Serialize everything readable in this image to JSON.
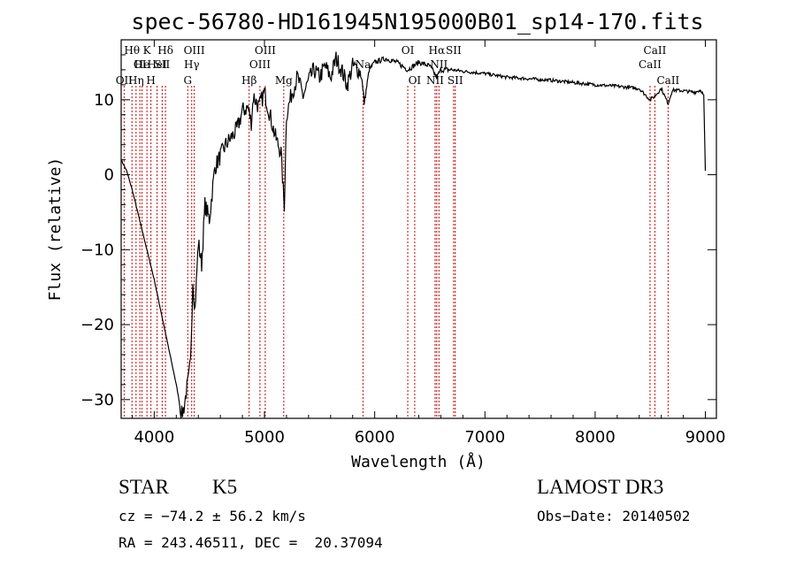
{
  "chart_data": {
    "type": "line",
    "title": "spec-56780-HD161945N195000B01_sp14-170.fits",
    "xlabel": "Wavelength (Å)",
    "ylabel": "Flux (relative)",
    "xlim": [
      3700,
      9100
    ],
    "ylim": [
      -32.5,
      18.0
    ],
    "xticks": [
      4000,
      5000,
      6000,
      7000,
      8000,
      9000
    ],
    "yticks": [
      -30,
      -20,
      -10,
      0,
      10
    ],
    "series": [
      {
        "name": "flux",
        "x": [
          3700,
          3750,
          3800,
          3850,
          3900,
          3950,
          4000,
          4050,
          4100,
          4150,
          4200,
          4230,
          4250,
          4270,
          4290,
          4310,
          4330,
          4350,
          4370,
          4400,
          4430,
          4460,
          4500,
          4550,
          4600,
          4650,
          4700,
          4750,
          4800,
          4850,
          4880,
          4900,
          4950,
          5000,
          5050,
          5100,
          5150,
          5170,
          5180,
          5200,
          5250,
          5300,
          5350,
          5400,
          5450,
          5500,
          5550,
          5600,
          5650,
          5700,
          5750,
          5800,
          5850,
          5880,
          5893,
          5905,
          5950,
          6000,
          6100,
          6200,
          6300,
          6400,
          6500,
          6563,
          6600,
          6700,
          6800,
          7000,
          7200,
          7400,
          7600,
          7800,
          8000,
          8200,
          8400,
          8498,
          8542,
          8600,
          8662,
          8700,
          8800,
          8900,
          8960,
          8985,
          9000
        ],
        "y": [
          2.0,
          0.5,
          -2.0,
          -5.0,
          -8.0,
          -11.0,
          -14.0,
          -17.5,
          -21.0,
          -24.5,
          -28.0,
          -30.5,
          -32.0,
          -31.0,
          -29.0,
          -27.5,
          -25.0,
          -14.0,
          -18.0,
          -9.0,
          -12.0,
          -4.0,
          -6.0,
          1.0,
          2.5,
          4.0,
          5.0,
          6.0,
          8.5,
          9.0,
          7.0,
          10.5,
          9.0,
          11.0,
          8.0,
          5.0,
          3.0,
          -2.0,
          -4.0,
          8.0,
          11.0,
          13.0,
          10.5,
          12.5,
          14.0,
          13.0,
          14.5,
          13.0,
          15.5,
          14.0,
          12.0,
          14.5,
          14.0,
          13.5,
          11.0,
          9.5,
          14.0,
          15.0,
          15.5,
          15.0,
          14.0,
          15.0,
          14.5,
          13.0,
          14.0,
          14.0,
          13.8,
          13.5,
          13.0,
          12.8,
          12.6,
          12.3,
          12.0,
          11.8,
          11.5,
          10.0,
          10.5,
          11.5,
          9.5,
          11.3,
          11.2,
          11.0,
          11.3,
          10.5,
          0.5
        ]
      }
    ],
    "lines": [
      {
        "wave": 3727,
        "label": "OII",
        "row": 3
      },
      {
        "wave": 3798,
        "label": "Hθ",
        "row": 1
      },
      {
        "wave": 3835,
        "label": "Hη",
        "row": 3
      },
      {
        "wave": 3870,
        "label": "OI",
        "row": 2
      },
      {
        "wave": 3889,
        "label": "He",
        "row": 2
      },
      {
        "wave": 3934,
        "label": "K",
        "row": 1
      },
      {
        "wave": 3970,
        "label": "H",
        "row": 3
      },
      {
        "wave": 4026,
        "label": "HeI",
        "row": 2
      },
      {
        "wave": 4072,
        "label": "SII",
        "row": 2
      },
      {
        "wave": 4102,
        "label": "Hδ",
        "row": 1
      },
      {
        "wave": 4304,
        "label": "G",
        "row": 3
      },
      {
        "wave": 4340,
        "label": "Hγ",
        "row": 2
      },
      {
        "wave": 4363,
        "label": "OIII",
        "row": 1
      },
      {
        "wave": 4861,
        "label": "Hβ",
        "row": 3
      },
      {
        "wave": 4959,
        "label": "OIII",
        "row": 2
      },
      {
        "wave": 5007,
        "label": "OIII",
        "row": 1
      },
      {
        "wave": 5175,
        "label": "Mg",
        "row": 3
      },
      {
        "wave": 5894,
        "label": "Na",
        "row": 2
      },
      {
        "wave": 6300,
        "label": "OI",
        "row": 1
      },
      {
        "wave": 6363,
        "label": "OI",
        "row": 3
      },
      {
        "wave": 6548,
        "label": "NII",
        "row": 3
      },
      {
        "wave": 6563,
        "label": "Hα",
        "row": 1
      },
      {
        "wave": 6583,
        "label": "NII",
        "row": 2
      },
      {
        "wave": 6716,
        "label": "SII",
        "row": 1
      },
      {
        "wave": 6731,
        "label": "SII",
        "row": 3
      },
      {
        "wave": 8498,
        "label": "CaII",
        "row": 2
      },
      {
        "wave": 8542,
        "label": "CaII",
        "row": 1
      },
      {
        "wave": 8662,
        "label": "CaII",
        "row": 3
      }
    ],
    "colors": {
      "line": "#000000",
      "marker": "#cc0000",
      "axes": "#000000"
    }
  },
  "info": {
    "class": "STAR",
    "subclass": "K5",
    "survey": "LAMOST DR3",
    "cz": "cz = −74.2 ± 56.2 km/s",
    "obs_date": "Obs−Date: 20140502",
    "coords": "RA = 243.46511, DEC =  20.37094"
  }
}
